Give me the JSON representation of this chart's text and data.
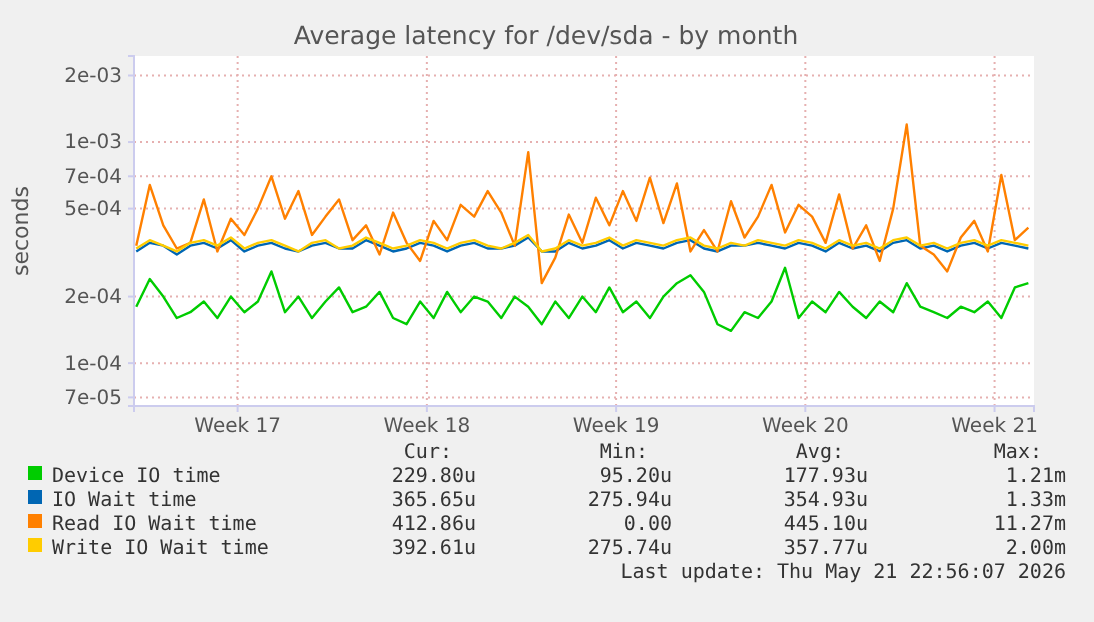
{
  "chart_data": {
    "type": "line",
    "title": "Average latency for /dev/sda - by month",
    "ylabel": "seconds",
    "x": [
      "2026-04-19T18:00",
      "2026-04-20T06:00",
      "2026-04-20T18:00",
      "2026-04-21T06:00",
      "2026-04-21T18:00",
      "2026-04-22T06:00",
      "2026-04-22T18:00",
      "2026-04-23T06:00",
      "2026-04-23T18:00",
      "2026-04-24T06:00",
      "2026-04-24T18:00",
      "2026-04-25T06:00",
      "2026-04-25T18:00",
      "2026-04-26T06:00",
      "2026-04-26T18:00",
      "2026-04-27T06:00",
      "2026-04-27T18:00",
      "2026-04-28T06:00",
      "2026-04-28T18:00",
      "2026-04-29T06:00",
      "2026-04-29T18:00",
      "2026-04-30T06:00",
      "2026-04-30T18:00",
      "2026-05-01T06:00",
      "2026-05-01T18:00",
      "2026-05-02T06:00",
      "2026-05-02T18:00",
      "2026-05-03T06:00",
      "2026-05-03T18:00",
      "2026-05-04T06:00",
      "2026-05-04T18:00",
      "2026-05-05T06:00",
      "2026-05-05T18:00",
      "2026-05-06T06:00",
      "2026-05-06T18:00",
      "2026-05-07T06:00",
      "2026-05-07T18:00",
      "2026-05-08T06:00",
      "2026-05-08T18:00",
      "2026-05-09T06:00",
      "2026-05-09T18:00",
      "2026-05-10T06:00",
      "2026-05-10T18:00",
      "2026-05-11T06:00",
      "2026-05-11T18:00",
      "2026-05-12T06:00",
      "2026-05-12T18:00",
      "2026-05-13T06:00",
      "2026-05-13T18:00",
      "2026-05-14T06:00",
      "2026-05-14T18:00",
      "2026-05-15T06:00",
      "2026-05-15T18:00",
      "2026-05-16T06:00",
      "2026-05-16T18:00",
      "2026-05-17T06:00",
      "2026-05-17T18:00",
      "2026-05-18T06:00",
      "2026-05-18T18:00",
      "2026-05-19T06:00",
      "2026-05-19T18:00",
      "2026-05-20T06:00",
      "2026-05-20T18:00",
      "2026-05-21T06:00",
      "2026-05-21T18:00",
      "2026-05-22T06:00",
      "2026-05-22T18:00"
    ],
    "series": [
      {
        "name": "Device IO time",
        "color": "#00cc00",
        "values": [
          0.00018,
          0.00024,
          0.0002,
          0.00016,
          0.00017,
          0.00019,
          0.00016,
          0.0002,
          0.00017,
          0.00019,
          0.00026,
          0.00017,
          0.0002,
          0.00016,
          0.00019,
          0.00022,
          0.00017,
          0.00018,
          0.00021,
          0.00016,
          0.00015,
          0.00019,
          0.00016,
          0.00021,
          0.00017,
          0.0002,
          0.00019,
          0.00016,
          0.0002,
          0.00018,
          0.00015,
          0.00019,
          0.00016,
          0.0002,
          0.00017,
          0.00022,
          0.00017,
          0.00019,
          0.00016,
          0.0002,
          0.00023,
          0.00025,
          0.00021,
          0.00015,
          0.00014,
          0.00017,
          0.00016,
          0.00019,
          0.00027,
          0.00016,
          0.00019,
          0.00017,
          0.00021,
          0.00018,
          0.00016,
          0.00019,
          0.00017,
          0.00023,
          0.00018,
          0.00017,
          0.00016,
          0.00018,
          0.00017,
          0.00019,
          0.00016,
          0.00022,
          0.00023
        ]
      },
      {
        "name": "IO Wait time",
        "color": "#0066b3",
        "values": [
          0.00032,
          0.00035,
          0.00034,
          0.00031,
          0.00034,
          0.00035,
          0.00033,
          0.00036,
          0.00032,
          0.00034,
          0.00035,
          0.00033,
          0.00032,
          0.00034,
          0.00035,
          0.00033,
          0.00033,
          0.00036,
          0.00034,
          0.00032,
          0.00033,
          0.00035,
          0.00034,
          0.00032,
          0.00034,
          0.00035,
          0.00033,
          0.00033,
          0.00034,
          0.00037,
          0.00032,
          0.00032,
          0.00035,
          0.00033,
          0.00034,
          0.00036,
          0.00033,
          0.00035,
          0.00034,
          0.00033,
          0.00035,
          0.00036,
          0.00033,
          0.00032,
          0.00034,
          0.00034,
          0.00035,
          0.00034,
          0.00033,
          0.00035,
          0.00034,
          0.00032,
          0.00035,
          0.00033,
          0.00034,
          0.00032,
          0.00035,
          0.00036,
          0.00033,
          0.00034,
          0.00032,
          0.00034,
          0.00035,
          0.00033,
          0.00035,
          0.00034,
          0.00033
        ]
      },
      {
        "name": "Read IO Wait time",
        "color": "#ff8000",
        "values": [
          0.00034,
          0.00064,
          0.00042,
          0.00033,
          0.00035,
          0.00055,
          0.00032,
          0.00045,
          0.00038,
          0.0005,
          0.0007,
          0.00045,
          0.0006,
          0.00038,
          0.00046,
          0.00055,
          0.00036,
          0.00042,
          0.00031,
          0.00048,
          0.00035,
          0.00029,
          0.00044,
          0.00036,
          0.00052,
          0.00046,
          0.0006,
          0.00048,
          0.00034,
          0.0009,
          0.00023,
          0.0003,
          0.00047,
          0.00035,
          0.00056,
          0.00042,
          0.0006,
          0.00044,
          0.00069,
          0.00043,
          0.00065,
          0.00032,
          0.0004,
          0.00032,
          0.00054,
          0.00037,
          0.00046,
          0.00064,
          0.00039,
          0.00052,
          0.00046,
          0.00035,
          0.00058,
          0.00033,
          0.00042,
          0.00029,
          0.0005,
          0.0012,
          0.00034,
          0.00031,
          0.00026,
          0.00037,
          0.00044,
          0.00032,
          0.00071,
          0.00036,
          0.00041
        ]
      },
      {
        "name": "Write IO Wait time",
        "color": "#ffcc00",
        "values": [
          0.00033,
          0.00036,
          0.00034,
          0.00032,
          0.00035,
          0.00036,
          0.00034,
          0.00037,
          0.00033,
          0.00035,
          0.00036,
          0.00034,
          0.00032,
          0.00035,
          0.00036,
          0.00033,
          0.00034,
          0.00037,
          0.00035,
          0.00033,
          0.00034,
          0.00036,
          0.00035,
          0.00033,
          0.00035,
          0.00036,
          0.00034,
          0.00033,
          0.00035,
          0.00038,
          0.00032,
          0.00033,
          0.00036,
          0.00034,
          0.00035,
          0.00037,
          0.00034,
          0.00036,
          0.00035,
          0.00034,
          0.00036,
          0.00037,
          0.00034,
          0.00033,
          0.00035,
          0.00034,
          0.00036,
          0.00035,
          0.00034,
          0.00036,
          0.00035,
          0.00033,
          0.00036,
          0.00034,
          0.00035,
          0.00033,
          0.00036,
          0.00037,
          0.00034,
          0.00035,
          0.00033,
          0.00035,
          0.00036,
          0.00034,
          0.00036,
          0.00035,
          0.00034
        ]
      }
    ],
    "xlim": [
      "2026-04-19T16:00",
      "2026-05-22T23:00"
    ],
    "xticks": [
      {
        "value": "2026-04-23T12:00",
        "label": "Week 17"
      },
      {
        "value": "2026-04-30T12:00",
        "label": "Week 18"
      },
      {
        "value": "2026-05-07T12:00",
        "label": "Week 19"
      },
      {
        "value": "2026-05-14T12:00",
        "label": "Week 20"
      },
      {
        "value": "2026-05-21T12:00",
        "label": "Week 21"
      }
    ],
    "ylim": [
      6.4e-05,
      0.00245
    ],
    "log": true,
    "yticks": [
      {
        "value": 7e-05,
        "label": "7e-05"
      },
      {
        "value": 0.0001,
        "label": "1e-04"
      },
      {
        "value": 0.0002,
        "label": "2e-04"
      },
      {
        "value": 0.0005,
        "label": "5e-04"
      },
      {
        "value": 0.0007,
        "label": "7e-04"
      },
      {
        "value": 0.001,
        "label": "1e-03"
      },
      {
        "value": 0.002,
        "label": "2e-03"
      }
    ],
    "grid": true,
    "legend": "bottom",
    "line_style": "solid",
    "marker": "none",
    "annotations": [
      "Cur:",
      "Min:",
      "Avg:",
      "Max:",
      "229.80u",
      "95.20u",
      "177.93u",
      "1.21m",
      "365.65u",
      "275.94u",
      "354.93u",
      "1.33m",
      "412.86u",
      "0.00",
      "445.10u",
      "11.27m",
      "392.61u",
      "275.74u",
      "357.77u",
      "2.00m",
      "Last update: Thu May 21 22:56:07 2026"
    ]
  }
}
